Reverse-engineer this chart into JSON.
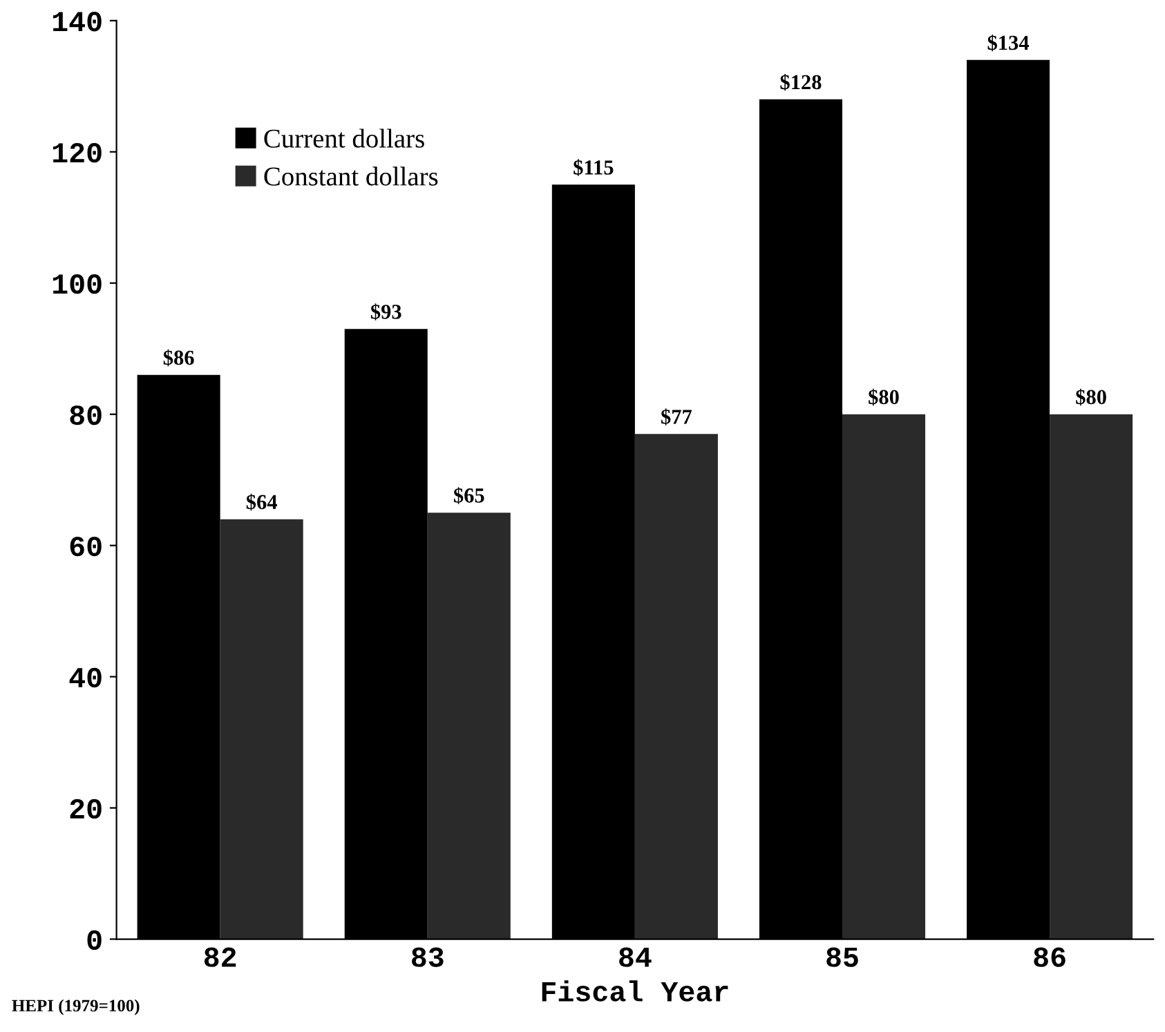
{
  "chart_data": {
    "type": "bar",
    "xlabel": "Fiscal Year",
    "categories": [
      "82",
      "83",
      "84",
      "85",
      "86"
    ],
    "series": [
      {
        "name": "Current dollars",
        "color": "#000000",
        "values": [
          86,
          93,
          115,
          128,
          134
        ],
        "value_labels": [
          "$86",
          "$93",
          "$115",
          "$128",
          "$134"
        ]
      },
      {
        "name": "Constant dollars",
        "color": "#2a2a2a",
        "values": [
          64,
          65,
          77,
          80,
          80
        ],
        "value_labels": [
          "$64",
          "$65",
          "$77",
          "$80",
          "$80"
        ]
      }
    ],
    "ylim": [
      0,
      140
    ],
    "yticks": [
      0,
      20,
      40,
      60,
      80,
      100,
      120,
      140
    ],
    "grid": false,
    "legend": "top left",
    "annotations": [
      "HEPI (1979=100)"
    ]
  }
}
